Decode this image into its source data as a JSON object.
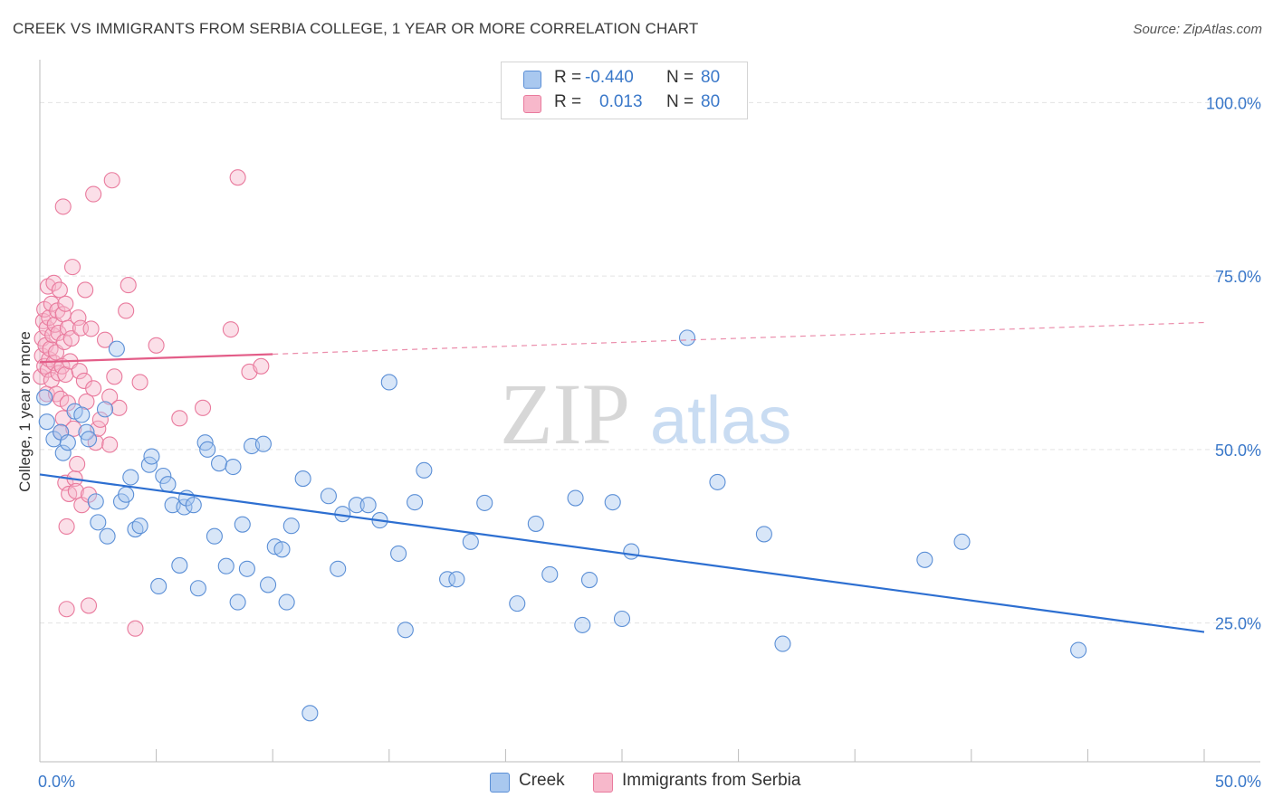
{
  "title": "CREEK VS IMMIGRANTS FROM SERBIA COLLEGE, 1 YEAR OR MORE CORRELATION CHART",
  "source": "Source: ZipAtlas.com",
  "watermark": {
    "zip": "ZIP",
    "atlas": "atlas"
  },
  "colors": {
    "blue_fill": "#a9c8ef",
    "blue_stroke": "#5b8fd6",
    "blue_line": "#2d6fd1",
    "pink_fill": "#f7b8cb",
    "pink_stroke": "#e97a9d",
    "pink_line": "#e35d88",
    "axis_value_text": "#3a78c9",
    "grid": "#e3e3e3"
  },
  "legend": {
    "rows": [
      {
        "r_label": "R =",
        "r_value": "-0.440",
        "n_label": "N =",
        "n_value": "80",
        "color": "blue"
      },
      {
        "r_label": "R =",
        "r_value": "0.013",
        "n_label": "N =",
        "n_value": "80",
        "color": "pink"
      }
    ]
  },
  "bottom_legend": [
    {
      "label": "Creek",
      "color": "blue"
    },
    {
      "label": "Immigrants from Serbia",
      "color": "pink"
    }
  ],
  "chart_data": {
    "type": "scatter",
    "title": "CREEK VS IMMIGRANTS FROM SERBIA COLLEGE, 1 YEAR OR MORE CORRELATION CHART",
    "xlabel": "",
    "ylabel": "College, 1 year or more",
    "xlim": [
      0,
      50
    ],
    "ylim": [
      5,
      105
    ],
    "x_tick_labels": [
      {
        "value": 0,
        "label": "0.0%"
      },
      {
        "value": 50,
        "label": "50.0%"
      }
    ],
    "y_tick_labels": [
      {
        "value": 100,
        "label": "100.0%"
      },
      {
        "value": 75,
        "label": "75.0%"
      },
      {
        "value": 50,
        "label": "50.0%"
      },
      {
        "value": 25,
        "label": "25.0%"
      }
    ],
    "grid": true,
    "legend_position": "top-center",
    "series": [
      {
        "name": "Creek",
        "color": "blue",
        "r": -0.44,
        "n": 80,
        "trendline": {
          "x": [
            0,
            50
          ],
          "y": [
            46.4,
            23.7
          ],
          "solid_until": 50
        },
        "points": [
          [
            0.2,
            57.5
          ],
          [
            0.3,
            54.0
          ],
          [
            0.6,
            51.5
          ],
          [
            0.9,
            52.5
          ],
          [
            1.0,
            49.5
          ],
          [
            1.2,
            51.0
          ],
          [
            1.5,
            55.5
          ],
          [
            1.8,
            55.0
          ],
          [
            2.0,
            52.5
          ],
          [
            2.1,
            51.5
          ],
          [
            2.5,
            39.5
          ],
          [
            2.4,
            42.5
          ],
          [
            2.9,
            37.5
          ],
          [
            2.8,
            55.8
          ],
          [
            3.3,
            64.5
          ],
          [
            3.5,
            42.5
          ],
          [
            3.7,
            43.5
          ],
          [
            3.9,
            46.0
          ],
          [
            4.1,
            38.5
          ],
          [
            4.3,
            39.0
          ],
          [
            4.7,
            47.8
          ],
          [
            4.8,
            49.0
          ],
          [
            5.1,
            30.3
          ],
          [
            5.3,
            46.2
          ],
          [
            5.5,
            45.0
          ],
          [
            5.7,
            42.0
          ],
          [
            6.0,
            33.3
          ],
          [
            6.2,
            41.7
          ],
          [
            6.3,
            43.0
          ],
          [
            6.6,
            42.0
          ],
          [
            6.8,
            30.0
          ],
          [
            7.1,
            51.0
          ],
          [
            7.2,
            50.0
          ],
          [
            7.5,
            37.5
          ],
          [
            7.7,
            48.0
          ],
          [
            8.0,
            33.2
          ],
          [
            8.3,
            47.5
          ],
          [
            8.5,
            28.0
          ],
          [
            8.7,
            39.2
          ],
          [
            8.9,
            32.8
          ],
          [
            9.1,
            50.5
          ],
          [
            9.6,
            50.8
          ],
          [
            9.8,
            30.5
          ],
          [
            10.1,
            36.0
          ],
          [
            10.4,
            35.6
          ],
          [
            10.6,
            28.0
          ],
          [
            10.8,
            39.0
          ],
          [
            11.3,
            45.8
          ],
          [
            11.6,
            12.0
          ],
          [
            12.4,
            43.3
          ],
          [
            12.8,
            32.8
          ],
          [
            13.0,
            40.7
          ],
          [
            13.6,
            42.0
          ],
          [
            14.1,
            42.0
          ],
          [
            14.6,
            39.8
          ],
          [
            15.0,
            59.7
          ],
          [
            15.4,
            35.0
          ],
          [
            15.7,
            24.0
          ],
          [
            16.1,
            42.4
          ],
          [
            16.5,
            47.0
          ],
          [
            17.5,
            31.3
          ],
          [
            17.9,
            31.3
          ],
          [
            18.5,
            36.7
          ],
          [
            19.1,
            42.3
          ],
          [
            20.5,
            27.8
          ],
          [
            21.3,
            39.3
          ],
          [
            21.9,
            32.0
          ],
          [
            23.0,
            43.0
          ],
          [
            23.3,
            24.7
          ],
          [
            23.6,
            31.2
          ],
          [
            24.6,
            42.4
          ],
          [
            25.0,
            25.6
          ],
          [
            25.4,
            35.3
          ],
          [
            27.8,
            66.1
          ],
          [
            29.1,
            45.3
          ],
          [
            31.1,
            37.8
          ],
          [
            31.9,
            22.0
          ],
          [
            38.0,
            34.1
          ],
          [
            39.6,
            36.7
          ],
          [
            44.6,
            21.1
          ]
        ]
      },
      {
        "name": "Immigrants from Serbia",
        "color": "pink",
        "r": 0.013,
        "n": 80,
        "trendline": {
          "x": [
            0,
            50
          ],
          "y": [
            62.6,
            68.3
          ],
          "solid_until": 10
        },
        "points": [
          [
            0.05,
            60.5
          ],
          [
            0.1,
            63.5
          ],
          [
            0.1,
            66.0
          ],
          [
            0.15,
            68.5
          ],
          [
            0.2,
            62.0
          ],
          [
            0.2,
            70.2
          ],
          [
            0.25,
            65.0
          ],
          [
            0.3,
            58.0
          ],
          [
            0.3,
            67.5
          ],
          [
            0.35,
            61.5
          ],
          [
            0.35,
            73.5
          ],
          [
            0.4,
            63.0
          ],
          [
            0.4,
            69.0
          ],
          [
            0.45,
            64.5
          ],
          [
            0.5,
            71.0
          ],
          [
            0.5,
            60.0
          ],
          [
            0.55,
            66.5
          ],
          [
            0.6,
            62.5
          ],
          [
            0.6,
            74.0
          ],
          [
            0.65,
            68.0
          ],
          [
            0.7,
            58.0
          ],
          [
            0.7,
            64.0
          ],
          [
            0.75,
            70.0
          ],
          [
            0.8,
            61.0
          ],
          [
            0.8,
            66.8
          ],
          [
            0.85,
            73.0
          ],
          [
            0.9,
            52.5
          ],
          [
            0.9,
            57.3
          ],
          [
            0.95,
            62.0
          ],
          [
            1.0,
            85.0
          ],
          [
            1.0,
            54.5
          ],
          [
            1.0,
            69.5
          ],
          [
            1.05,
            65.5
          ],
          [
            1.1,
            45.2
          ],
          [
            1.1,
            60.8
          ],
          [
            1.1,
            71.0
          ],
          [
            1.15,
            38.9
          ],
          [
            1.15,
            27.0
          ],
          [
            1.2,
            56.7
          ],
          [
            1.2,
            67.5
          ],
          [
            1.25,
            43.6
          ],
          [
            1.3,
            62.7
          ],
          [
            1.35,
            66.0
          ],
          [
            1.4,
            76.3
          ],
          [
            1.45,
            53.0
          ],
          [
            1.5,
            45.8
          ],
          [
            1.55,
            44.0
          ],
          [
            1.6,
            47.9
          ],
          [
            1.65,
            69.0
          ],
          [
            1.7,
            61.3
          ],
          [
            1.75,
            67.5
          ],
          [
            1.8,
            42.0
          ],
          [
            1.9,
            59.9
          ],
          [
            1.95,
            73.0
          ],
          [
            2.0,
            56.9
          ],
          [
            2.1,
            27.5
          ],
          [
            2.1,
            43.5
          ],
          [
            2.2,
            67.4
          ],
          [
            2.3,
            58.8
          ],
          [
            2.3,
            86.8
          ],
          [
            2.4,
            51.0
          ],
          [
            2.5,
            53.0
          ],
          [
            2.6,
            54.3
          ],
          [
            2.8,
            65.8
          ],
          [
            3.0,
            50.7
          ],
          [
            3.0,
            57.6
          ],
          [
            3.1,
            88.8
          ],
          [
            3.2,
            60.5
          ],
          [
            3.4,
            56.0
          ],
          [
            3.7,
            70.0
          ],
          [
            3.8,
            73.7
          ],
          [
            4.1,
            24.2
          ],
          [
            4.3,
            59.7
          ],
          [
            5.0,
            65.0
          ],
          [
            6.0,
            54.5
          ],
          [
            7.0,
            56.0
          ],
          [
            8.2,
            67.3
          ],
          [
            8.5,
            89.2
          ],
          [
            9.0,
            61.2
          ],
          [
            9.5,
            62.0
          ]
        ]
      }
    ]
  }
}
